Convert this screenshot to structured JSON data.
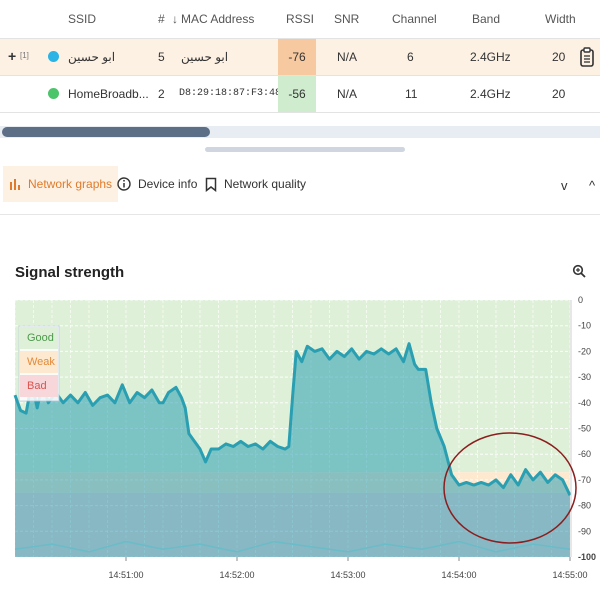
{
  "table": {
    "headers": {
      "ssid": "SSID",
      "num": "#",
      "mac": "MAC Address",
      "rssi": "RSSI",
      "snr": "SNR",
      "channel": "Channel",
      "band": "Band",
      "width": "Width"
    },
    "rows": [
      {
        "expand": "+",
        "tag": "[1]",
        "dot_color": "#2bb3e6",
        "ssid": "ابو حسين",
        "num": "5",
        "mac": "ابو حسين",
        "rssi": "-76",
        "rssi_bg": "#f6c9a0",
        "snr": "N/A",
        "channel": "6",
        "band": "2.4GHz",
        "width": "20"
      },
      {
        "dot_color": "#4cc46a",
        "ssid": "HomeBroadb...",
        "num": "2",
        "mac": "D8:29:18:87:F3:48",
        "rssi": "-56",
        "rssi_bg": "#cfeccf",
        "snr": "N/A",
        "channel": "11",
        "band": "2.4GHz",
        "width": "20"
      }
    ]
  },
  "tabs": [
    {
      "label": "Network graphs",
      "active": true
    },
    {
      "label": "Device info",
      "active": false
    },
    {
      "label": "Network quality",
      "active": false
    }
  ],
  "chevrons": {
    "down": "v",
    "up": "^"
  },
  "chart_data": {
    "type": "area",
    "title": "Signal strength",
    "legend": [
      "Good",
      "Weak",
      "Bad"
    ],
    "legend_placement": "top-left",
    "zones": [
      {
        "name": "Good",
        "from": 0,
        "to": -67,
        "color": "#dff0d8"
      },
      {
        "name": "Weak",
        "from": -67,
        "to": -75,
        "color": "#fde9cf"
      },
      {
        "name": "Bad",
        "from": -75,
        "to": -100,
        "color": "#f8d7da"
      }
    ],
    "y_ticks": [
      "0",
      "-10",
      "-20",
      "-30",
      "-40",
      "-50",
      "-60",
      "-70",
      "-80",
      "-90",
      "-100"
    ],
    "ylim": [
      -100,
      0
    ],
    "x_ticks": [
      "14:51:00",
      "14:52:00",
      "14:53:00",
      "14:54:00",
      "14:55:00"
    ],
    "x_tick_values": [
      60,
      120,
      180,
      240,
      300
    ],
    "xlim": [
      0,
      300
    ],
    "series": [
      {
        "color": "#2a9fb2",
        "points": [
          [
            0,
            -37
          ],
          [
            3,
            -43
          ],
          [
            6,
            -44
          ],
          [
            9,
            -32
          ],
          [
            12,
            -42
          ],
          [
            15,
            -32
          ],
          [
            18,
            -40
          ],
          [
            22,
            -36
          ],
          [
            26,
            -40
          ],
          [
            30,
            -37
          ],
          [
            34,
            -40
          ],
          [
            38,
            -36
          ],
          [
            42,
            -41
          ],
          [
            46,
            -38
          ],
          [
            50,
            -37
          ],
          [
            54,
            -40
          ],
          [
            58,
            -33
          ],
          [
            62,
            -40
          ],
          [
            66,
            -36
          ],
          [
            70,
            -38
          ],
          [
            74,
            -35
          ],
          [
            78,
            -40
          ],
          [
            80,
            -40
          ],
          [
            83,
            -36
          ],
          [
            87,
            -34
          ],
          [
            90,
            -38
          ],
          [
            92,
            -42
          ],
          [
            94,
            -52
          ],
          [
            97,
            -55
          ],
          [
            100,
            -58
          ],
          [
            103,
            -63
          ],
          [
            106,
            -58
          ],
          [
            110,
            -58
          ],
          [
            114,
            -56
          ],
          [
            118,
            -57
          ],
          [
            122,
            -55
          ],
          [
            126,
            -57
          ],
          [
            130,
            -56
          ],
          [
            134,
            -58
          ],
          [
            138,
            -55
          ],
          [
            142,
            -57
          ],
          [
            146,
            -58
          ],
          [
            148,
            -57
          ],
          [
            150,
            -38
          ],
          [
            152,
            -20
          ],
          [
            155,
            -24
          ],
          [
            158,
            -18
          ],
          [
            162,
            -20
          ],
          [
            166,
            -19
          ],
          [
            170,
            -23
          ],
          [
            174,
            -20
          ],
          [
            178,
            -22
          ],
          [
            182,
            -19
          ],
          [
            186,
            -23
          ],
          [
            190,
            -20
          ],
          [
            194,
            -21
          ],
          [
            198,
            -19
          ],
          [
            202,
            -21
          ],
          [
            206,
            -19
          ],
          [
            210,
            -24
          ],
          [
            213,
            -17
          ],
          [
            216,
            -25
          ],
          [
            218,
            -27
          ],
          [
            222,
            -27
          ],
          [
            225,
            -40
          ],
          [
            228,
            -50
          ],
          [
            232,
            -57
          ],
          [
            236,
            -68
          ],
          [
            240,
            -72
          ],
          [
            244,
            -71
          ],
          [
            248,
            -72
          ],
          [
            252,
            -71
          ],
          [
            256,
            -72
          ],
          [
            260,
            -70
          ],
          [
            264,
            -73
          ],
          [
            268,
            -68
          ],
          [
            272,
            -72
          ],
          [
            276,
            -66
          ],
          [
            280,
            -70
          ],
          [
            284,
            -67
          ],
          [
            288,
            -71
          ],
          [
            292,
            -68
          ],
          [
            296,
            -70
          ],
          [
            300,
            -76
          ]
        ]
      },
      {
        "color": "#b8dfe3",
        "points": [
          [
            0,
            -97
          ],
          [
            20,
            -95
          ],
          [
            40,
            -98
          ],
          [
            60,
            -94
          ],
          [
            80,
            -97
          ],
          [
            100,
            -95
          ],
          [
            120,
            -98
          ],
          [
            140,
            -94
          ],
          [
            160,
            -96
          ],
          [
            180,
            -98
          ],
          [
            200,
            -95
          ],
          [
            220,
            -97
          ],
          [
            240,
            -94
          ],
          [
            260,
            -98
          ],
          [
            280,
            -95
          ],
          [
            300,
            -97
          ]
        ]
      }
    ]
  },
  "annotation": {
    "shape": "ellipse",
    "color": "#8b1e1e"
  }
}
